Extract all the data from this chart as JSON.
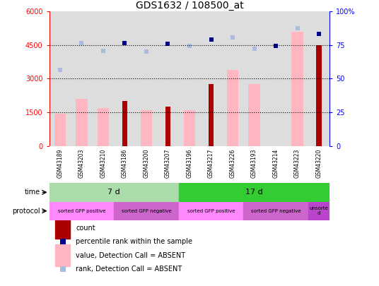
{
  "title": "GDS1632 / 108500_at",
  "samples": [
    "GSM43189",
    "GSM43203",
    "GSM43210",
    "GSM43186",
    "GSM43200",
    "GSM43207",
    "GSM43196",
    "GSM43217",
    "GSM43226",
    "GSM43193",
    "GSM43214",
    "GSM43223",
    "GSM43220"
  ],
  "count_values": [
    0,
    0,
    0,
    2000,
    0,
    1750,
    0,
    2750,
    0,
    0,
    0,
    0,
    4500
  ],
  "value_absent": [
    1430,
    2100,
    1700,
    0,
    1600,
    0,
    1600,
    0,
    3400,
    2750,
    0,
    5100,
    0
  ],
  "rank_absent": [
    3400,
    4600,
    4250,
    0,
    4200,
    0,
    4450,
    0,
    4850,
    4350,
    0,
    5250,
    0
  ],
  "percentile_dark": [
    0,
    0,
    0,
    4600,
    0,
    4550,
    0,
    4750,
    0,
    0,
    4450,
    0,
    5000
  ],
  "ylim_left": [
    0,
    6000
  ],
  "ylim_right": [
    0,
    100
  ],
  "yticks_left": [
    0,
    1500,
    3000,
    4500,
    6000
  ],
  "yticks_right": [
    0,
    25,
    50,
    75,
    100
  ],
  "color_count": "#aa0000",
  "color_percentile_dark": "#00008b",
  "color_value_absent": "#ffb6c1",
  "color_rank_absent": "#aabbdd",
  "color_time_7": "#aaddaa",
  "color_time_17": "#33cc33",
  "color_proto_pos": "#ff88ff",
  "color_proto_neg": "#cc66cc",
  "color_proto_unsorted": "#bb44cc",
  "color_sample_bg_even": "#dddddd",
  "color_sample_bg_odd": "#cccccc"
}
